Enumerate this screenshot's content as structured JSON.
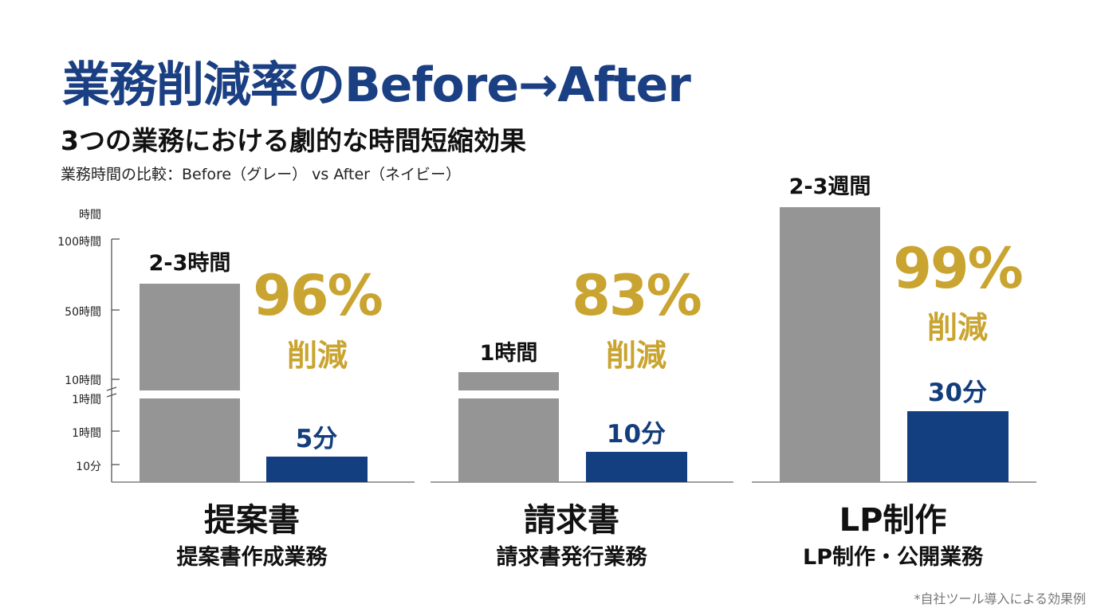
{
  "title": "業務削減率のBefore→After",
  "subtitle": "3つの業務における劇的な時間短縮効果",
  "caption": "業務時間の比較：Before（グレー） vs After（ネイビー）",
  "footnote": "*自社ツール導入による効果例",
  "colors": {
    "before": "#959595",
    "after": "#133f80",
    "accent": "#c9a430",
    "title": "#1b3f83"
  },
  "chart_data": {
    "type": "bar",
    "title": "業務削減率のBefore→After",
    "ylabel": "時間",
    "y_axis_break": true,
    "yticks": [
      "100時間",
      "50時間",
      "10時間",
      "1時間",
      "1時間",
      "10分"
    ],
    "categories": [
      "提案書",
      "請求書",
      "LP制作"
    ],
    "category_subtitles": [
      "提案書作成業務",
      "請求書発行業務",
      "LP制作・公開業務"
    ],
    "series": [
      {
        "name": "Before",
        "labels": [
          "2-3時間",
          "1時間",
          "2-3週間"
        ]
      },
      {
        "name": "After",
        "labels": [
          "5分",
          "10分",
          "30分"
        ]
      }
    ],
    "reduction": {
      "values": [
        "96%",
        "83%",
        "99%"
      ],
      "label": "削減"
    }
  }
}
